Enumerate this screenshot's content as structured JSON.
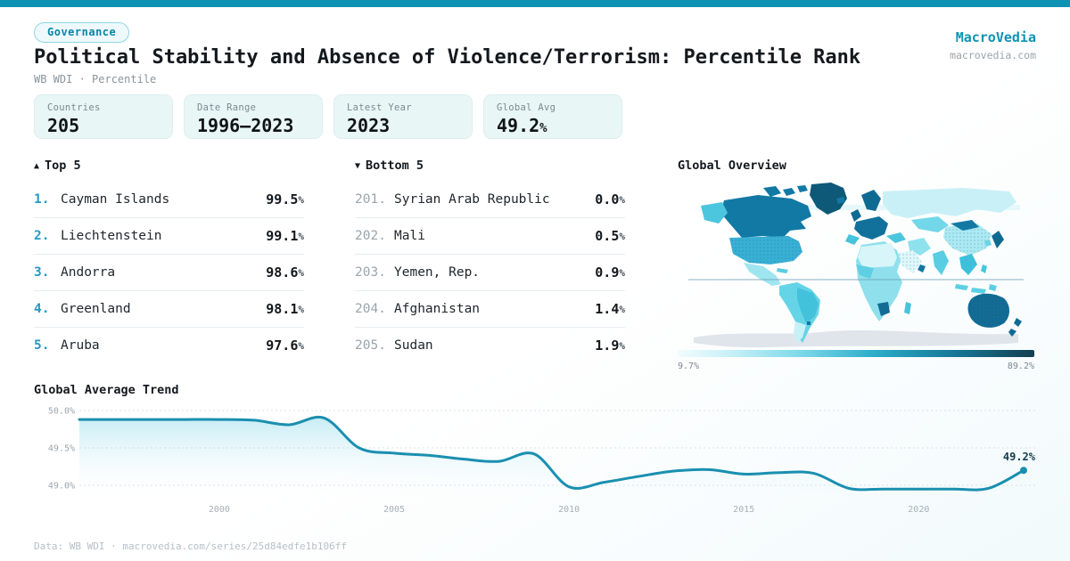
{
  "colors": {
    "accent": "#0e93b4",
    "accent_dark": "#0c84a6",
    "rank_top": "#2499c8",
    "line": "#1a8fb0",
    "scale_min_color": "#f2fcfe",
    "scale_max_color": "#143e50"
  },
  "header": {
    "badge": "Governance",
    "title": "Political Stability and Absence of Violence/Terrorism: Percentile Rank",
    "subtitle": "WB WDI · Percentile"
  },
  "brand": {
    "name": "MacroVedia",
    "domain": "macrovedia.com"
  },
  "stats": [
    {
      "label": "Countries",
      "value": "205",
      "unit": ""
    },
    {
      "label": "Date Range",
      "value": "1996—2023",
      "unit": ""
    },
    {
      "label": "Latest Year",
      "value": "2023",
      "unit": ""
    },
    {
      "label": "Global Avg",
      "value": "49.2",
      "unit": "%"
    }
  ],
  "top5": {
    "marker": "▲",
    "title": "Top 5",
    "rows": [
      {
        "rank": "1.",
        "name": "Cayman Islands",
        "value": "99.5",
        "unit": "%"
      },
      {
        "rank": "2.",
        "name": "Liechtenstein",
        "value": "99.1",
        "unit": "%"
      },
      {
        "rank": "3.",
        "name": "Andorra",
        "value": "98.6",
        "unit": "%"
      },
      {
        "rank": "4.",
        "name": "Greenland",
        "value": "98.1",
        "unit": "%"
      },
      {
        "rank": "5.",
        "name": "Aruba",
        "value": "97.6",
        "unit": "%"
      }
    ]
  },
  "bottom5": {
    "marker": "▼",
    "title": "Bottom 5",
    "rows": [
      {
        "rank": "201.",
        "name": "Syrian Arab Republic",
        "value": "0.0",
        "unit": "%"
      },
      {
        "rank": "202.",
        "name": "Mali",
        "value": "0.5",
        "unit": "%"
      },
      {
        "rank": "203.",
        "name": "Yemen, Rep.",
        "value": "0.9",
        "unit": "%"
      },
      {
        "rank": "204.",
        "name": "Afghanistan",
        "value": "1.4",
        "unit": "%"
      },
      {
        "rank": "205.",
        "name": "Sudan",
        "value": "1.9",
        "unit": "%"
      }
    ]
  },
  "map": {
    "title": "Global Overview",
    "legend": {
      "min": "9.7%",
      "max": "89.2%"
    }
  },
  "trend": {
    "title": "Global Average Trend"
  },
  "footer": {
    "text": "Data: WB WDI · macrovedia.com/series/25d84edfe1b106ff"
  },
  "chart_data": [
    {
      "type": "line",
      "title": "Global Average Trend",
      "x": [
        1996,
        1997,
        1998,
        1999,
        2000,
        2001,
        2002,
        2003,
        2004,
        2005,
        2006,
        2007,
        2008,
        2009,
        2010,
        2011,
        2012,
        2013,
        2014,
        2015,
        2016,
        2017,
        2018,
        2019,
        2020,
        2021,
        2022,
        2023
      ],
      "values": [
        49.88,
        49.88,
        49.88,
        49.88,
        49.88,
        49.87,
        49.81,
        49.9,
        49.5,
        49.43,
        49.4,
        49.35,
        49.32,
        49.42,
        48.98,
        49.04,
        49.12,
        49.19,
        49.21,
        49.15,
        49.17,
        49.16,
        48.96,
        48.95,
        48.95,
        48.95,
        48.96,
        49.2
      ],
      "xlabel": "",
      "ylabel": "",
      "ylim": [
        48.8,
        50.05
      ],
      "yticks": [
        {
          "label": "50.0%",
          "value": 50.0
        },
        {
          "label": "49.5%",
          "value": 49.5
        },
        {
          "label": "49.0%",
          "value": 49.0
        }
      ],
      "xticks": [
        2000,
        2005,
        2010,
        2015,
        2020
      ],
      "end_label": "49.2%",
      "grid": true,
      "legend_position": "none",
      "line_color": "#1a8fb0"
    },
    {
      "type": "heatmap",
      "subtype": "world-choropleth",
      "title": "Global Overview",
      "scale": {
        "min": 9.7,
        "max": 89.2,
        "min_label": "9.7%",
        "max_label": "89.2%"
      },
      "note": "Percentile rank by country; light = low, dark teal = high"
    }
  ]
}
